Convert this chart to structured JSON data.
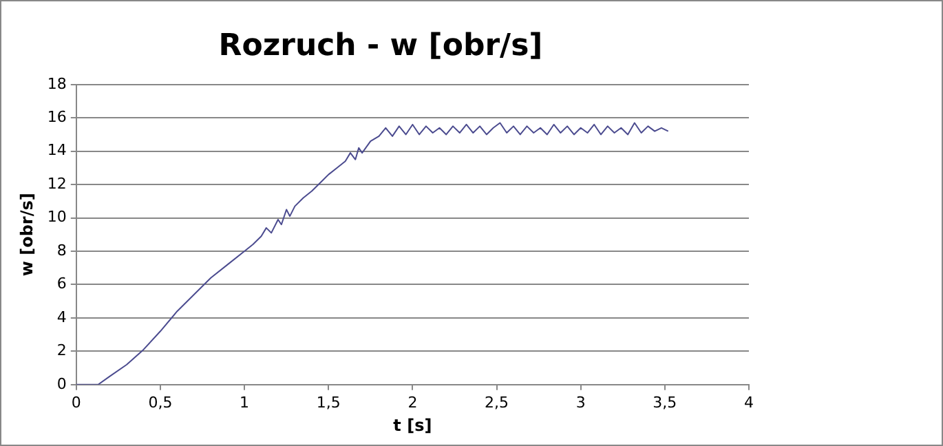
{
  "chart_data": {
    "type": "line",
    "title": "Rozruch - w [obr/s]",
    "xlabel": "t [s]",
    "ylabel": "w [obr/s]",
    "x": [
      0,
      0.13,
      0.2,
      0.3,
      0.4,
      0.5,
      0.6,
      0.7,
      0.8,
      0.9,
      1.0,
      1.05,
      1.1,
      1.13,
      1.16,
      1.2,
      1.22,
      1.25,
      1.27,
      1.3,
      1.35,
      1.4,
      1.45,
      1.5,
      1.55,
      1.6,
      1.63,
      1.66,
      1.68,
      1.7,
      1.75,
      1.8,
      1.84,
      1.88,
      1.92,
      1.96,
      2.0,
      2.04,
      2.08,
      2.12,
      2.16,
      2.2,
      2.24,
      2.28,
      2.32,
      2.36,
      2.4,
      2.44,
      2.48,
      2.52,
      2.56,
      2.6,
      2.64,
      2.68,
      2.72,
      2.76,
      2.8,
      2.84,
      2.88,
      2.92,
      2.96,
      3.0,
      3.04,
      3.08,
      3.12,
      3.16,
      3.2,
      3.24,
      3.28,
      3.32,
      3.36,
      3.4,
      3.44,
      3.48,
      3.52
    ],
    "series": [
      {
        "color": "#4b4b8f",
        "values": [
          0,
          0,
          0.5,
          1.2,
          2.1,
          3.2,
          4.4,
          5.4,
          6.4,
          7.2,
          8.0,
          8.4,
          8.9,
          9.4,
          9.1,
          9.9,
          9.6,
          10.5,
          10.1,
          10.7,
          11.2,
          11.6,
          12.1,
          12.6,
          13.0,
          13.4,
          13.9,
          13.5,
          14.2,
          13.9,
          14.6,
          14.9,
          15.4,
          14.9,
          15.5,
          15.0,
          15.6,
          15.0,
          15.5,
          15.1,
          15.4,
          15.0,
          15.5,
          15.1,
          15.6,
          15.1,
          15.5,
          15.0,
          15.4,
          15.7,
          15.1,
          15.5,
          15.0,
          15.5,
          15.1,
          15.4,
          15.0,
          15.6,
          15.1,
          15.5,
          15.0,
          15.4,
          15.1,
          15.6,
          15.0,
          15.5,
          15.1,
          15.4,
          15.0,
          15.7,
          15.1,
          15.5,
          15.2,
          15.4,
          15.2
        ]
      }
    ],
    "xlim": [
      0,
      4
    ],
    "xticks": [
      0,
      {
        "value": 0.5,
        "label": "0,5"
      },
      1,
      {
        "value": 1.5,
        "label": "1,5"
      },
      2,
      {
        "value": 2.5,
        "label": "2,5"
      },
      3,
      {
        "value": 3.5,
        "label": "3,5"
      },
      4
    ],
    "ylim": [
      0,
      18
    ],
    "yticks": [
      0,
      2,
      4,
      6,
      8,
      10,
      12,
      14,
      16,
      18
    ],
    "grid": "y",
    "legend": false,
    "marker": "none",
    "line_style": "solid"
  }
}
